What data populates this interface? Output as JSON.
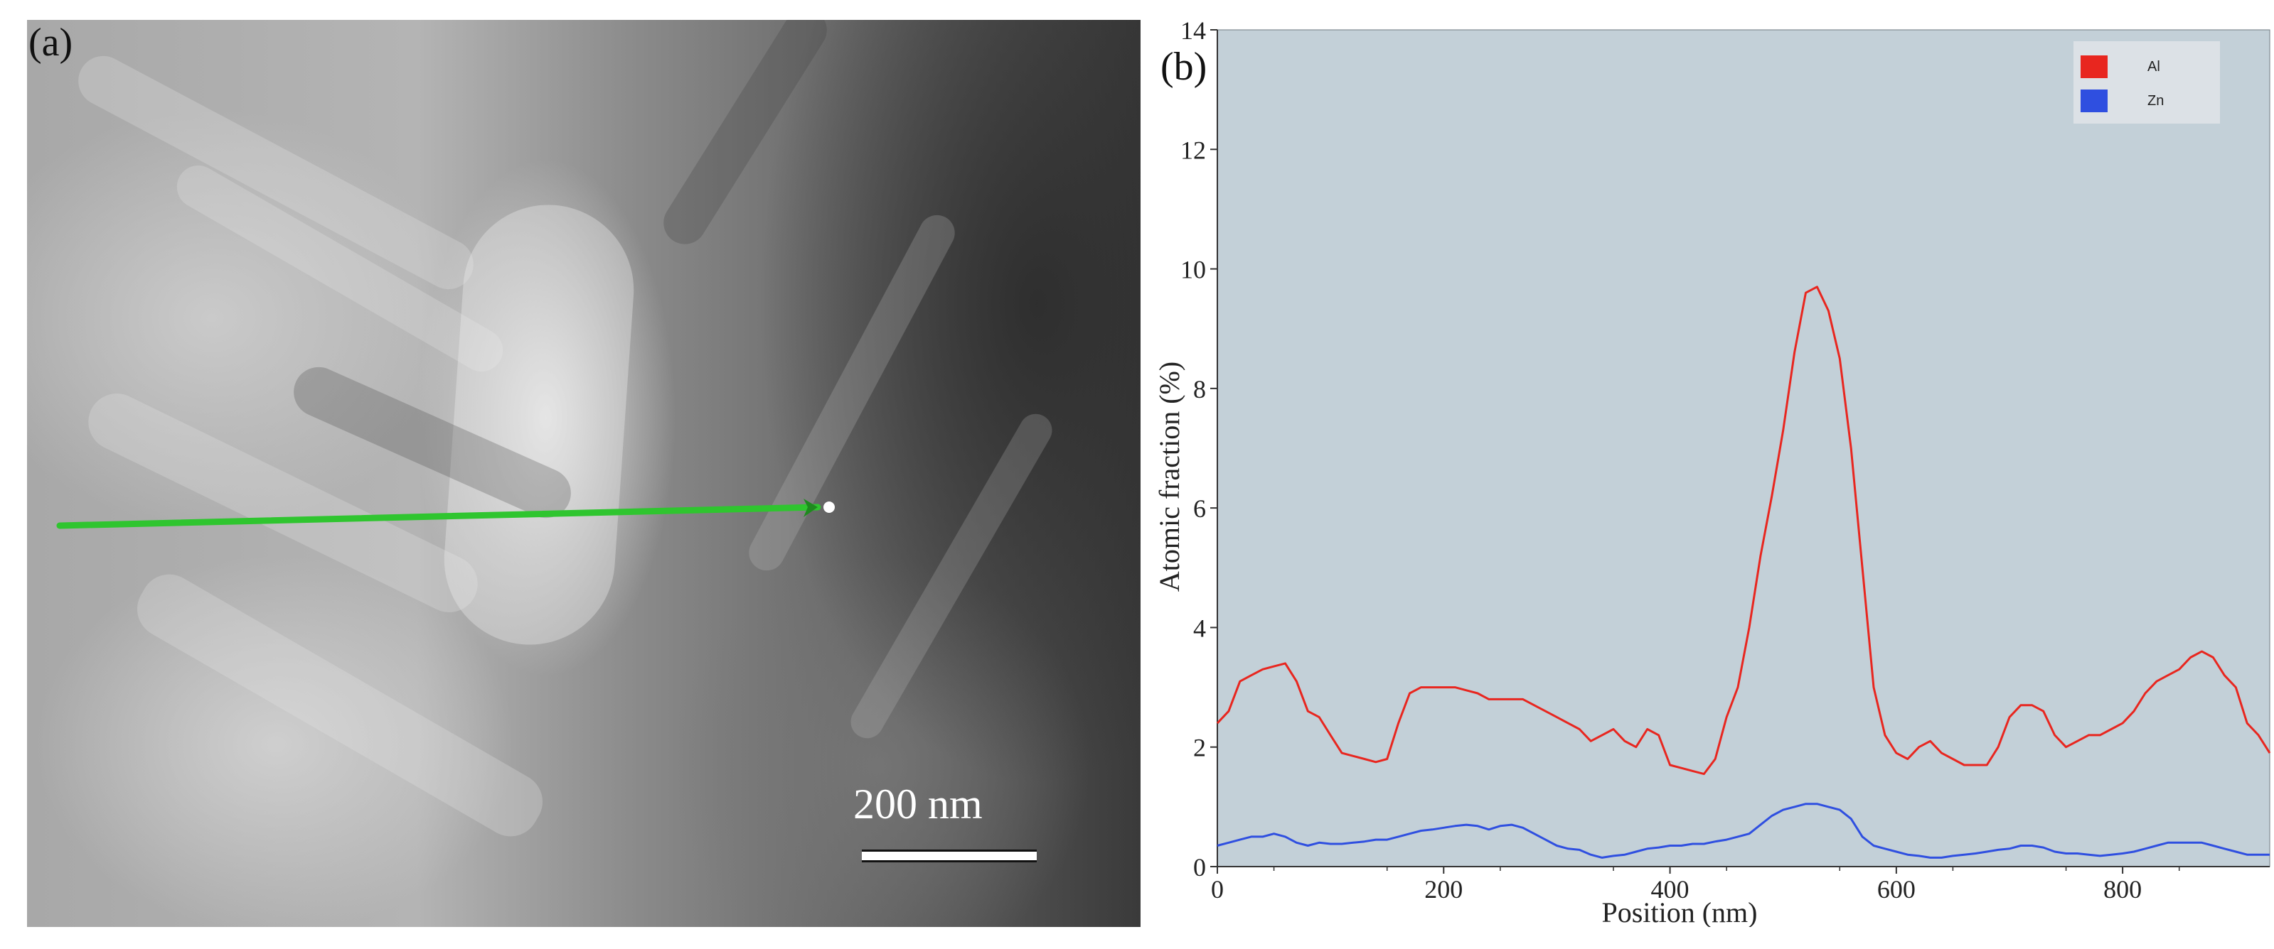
{
  "panel_a": {
    "label": "(a)",
    "scale_bar_label": "200 nm"
  },
  "panel_b": {
    "label": "(b)"
  },
  "chart_data": {
    "type": "line",
    "title": "",
    "xlabel": "Position (nm)",
    "ylabel": "Atomic fraction (%)",
    "xlim": [
      0,
      930
    ],
    "ylim": [
      0,
      14
    ],
    "xticks": [
      0,
      200,
      400,
      600,
      800
    ],
    "yticks": [
      0,
      2,
      4,
      6,
      8,
      10,
      12,
      14
    ],
    "legend_position": "top-right",
    "colors": {
      "Al": "#e8261f",
      "Zn": "#2f4fe0",
      "plot_bg": "#c3d0d8"
    },
    "series": [
      {
        "name": "Al",
        "color": "#e8261f",
        "x": [
          0,
          10,
          20,
          30,
          40,
          50,
          60,
          70,
          80,
          90,
          100,
          110,
          120,
          130,
          140,
          150,
          160,
          170,
          180,
          190,
          200,
          210,
          220,
          230,
          240,
          250,
          260,
          270,
          280,
          290,
          300,
          310,
          320,
          330,
          340,
          350,
          360,
          370,
          380,
          390,
          400,
          410,
          420,
          430,
          440,
          450,
          460,
          470,
          480,
          490,
          500,
          510,
          520,
          530,
          540,
          550,
          560,
          570,
          580,
          590,
          600,
          610,
          620,
          630,
          640,
          650,
          660,
          670,
          680,
          690,
          700,
          710,
          720,
          730,
          740,
          750,
          760,
          770,
          780,
          790,
          800,
          810,
          820,
          830,
          840,
          850,
          860,
          870,
          880,
          890,
          900,
          910,
          920,
          930
        ],
        "values": [
          2.4,
          2.6,
          3.1,
          3.2,
          3.3,
          3.35,
          3.4,
          3.1,
          2.6,
          2.5,
          2.2,
          1.9,
          1.85,
          1.8,
          1.75,
          1.8,
          2.4,
          2.9,
          3.0,
          3.0,
          3.0,
          3.0,
          2.95,
          2.9,
          2.8,
          2.8,
          2.8,
          2.8,
          2.7,
          2.6,
          2.5,
          2.4,
          2.3,
          2.1,
          2.2,
          2.3,
          2.1,
          2.0,
          2.3,
          2.2,
          1.7,
          1.65,
          1.6,
          1.55,
          1.8,
          2.5,
          3.0,
          4.0,
          5.2,
          6.2,
          7.3,
          8.6,
          9.6,
          9.7,
          9.3,
          8.5,
          7.0,
          5.0,
          3.0,
          2.2,
          1.9,
          1.8,
          2.0,
          2.1,
          1.9,
          1.8,
          1.7,
          1.7,
          1.7,
          2.0,
          2.5,
          2.7,
          2.7,
          2.6,
          2.2,
          2.0,
          2.1,
          2.2,
          2.2,
          2.3,
          2.4,
          2.6,
          2.9,
          3.1,
          3.2,
          3.3,
          3.5,
          3.6,
          3.5,
          3.2,
          3.0,
          2.4,
          2.2,
          1.9
        ]
      },
      {
        "name": "Zn",
        "color": "#2f4fe0",
        "x": [
          0,
          10,
          20,
          30,
          40,
          50,
          60,
          70,
          80,
          90,
          100,
          110,
          120,
          130,
          140,
          150,
          160,
          170,
          180,
          190,
          200,
          210,
          220,
          230,
          240,
          250,
          260,
          270,
          280,
          290,
          300,
          310,
          320,
          330,
          340,
          350,
          360,
          370,
          380,
          390,
          400,
          410,
          420,
          430,
          440,
          450,
          460,
          470,
          480,
          490,
          500,
          510,
          520,
          530,
          540,
          550,
          560,
          570,
          580,
          590,
          600,
          610,
          620,
          630,
          640,
          650,
          660,
          670,
          680,
          690,
          700,
          710,
          720,
          730,
          740,
          750,
          760,
          770,
          780,
          790,
          800,
          810,
          820,
          830,
          840,
          850,
          860,
          870,
          880,
          890,
          900,
          910,
          920,
          930
        ],
        "values": [
          0.35,
          0.4,
          0.45,
          0.5,
          0.5,
          0.55,
          0.5,
          0.4,
          0.35,
          0.4,
          0.38,
          0.38,
          0.4,
          0.42,
          0.45,
          0.45,
          0.5,
          0.55,
          0.6,
          0.62,
          0.65,
          0.68,
          0.7,
          0.68,
          0.62,
          0.68,
          0.7,
          0.65,
          0.55,
          0.45,
          0.35,
          0.3,
          0.28,
          0.2,
          0.15,
          0.18,
          0.2,
          0.25,
          0.3,
          0.32,
          0.35,
          0.35,
          0.38,
          0.38,
          0.42,
          0.45,
          0.5,
          0.55,
          0.7,
          0.85,
          0.95,
          1.0,
          1.05,
          1.05,
          1.0,
          0.95,
          0.8,
          0.5,
          0.35,
          0.3,
          0.25,
          0.2,
          0.18,
          0.15,
          0.15,
          0.18,
          0.2,
          0.22,
          0.25,
          0.28,
          0.3,
          0.35,
          0.35,
          0.32,
          0.25,
          0.22,
          0.22,
          0.2,
          0.18,
          0.2,
          0.22,
          0.25,
          0.3,
          0.35,
          0.4,
          0.4,
          0.4,
          0.4,
          0.35,
          0.3,
          0.25,
          0.2,
          0.2,
          0.2
        ]
      }
    ]
  }
}
